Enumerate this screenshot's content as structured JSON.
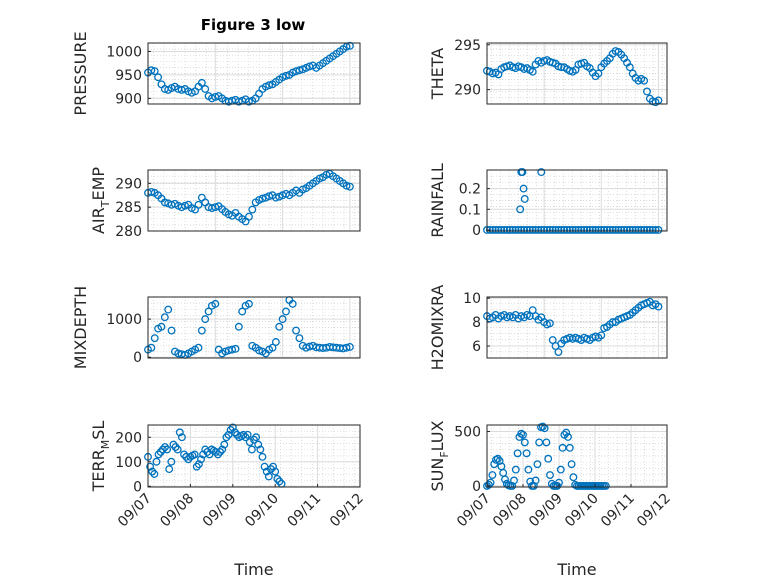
{
  "figure_title": "Figure 3 low",
  "marker_color": "#0072bd",
  "chart_data": [
    {
      "type": "scatter",
      "ylabel": "PRESSURE",
      "ylabel_sub": "",
      "xlim": [
        0,
        3.15
      ],
      "ylim": [
        888,
        1018
      ],
      "yticks": [
        900,
        950,
        1000
      ],
      "ytick_labels": [
        "900",
        "950",
        "1000"
      ],
      "xticks": [],
      "xtick_labels": [],
      "xlabel": "",
      "x": [
        0.0,
        0.05,
        0.1,
        0.15,
        0.2,
        0.25,
        0.3,
        0.35,
        0.4,
        0.45,
        0.5,
        0.55,
        0.6,
        0.65,
        0.7,
        0.75,
        0.8,
        0.85,
        0.9,
        0.95,
        1.0,
        1.05,
        1.1,
        1.15,
        1.2,
        1.25,
        1.3,
        1.35,
        1.4,
        1.45,
        1.5,
        1.55,
        1.6,
        1.65,
        1.7,
        1.75,
        1.8,
        1.85,
        1.9,
        1.95,
        2.0,
        2.05,
        2.1,
        2.15,
        2.2,
        2.25,
        2.3,
        2.35,
        2.4,
        2.45,
        2.5,
        2.55,
        2.6,
        2.65,
        2.7,
        2.75,
        2.8,
        2.85,
        2.9,
        2.95,
        3.0
      ],
      "y": [
        955,
        960,
        958,
        945,
        930,
        920,
        918,
        922,
        925,
        920,
        918,
        920,
        915,
        912,
        915,
        925,
        933,
        920,
        905,
        900,
        903,
        905,
        900,
        895,
        893,
        895,
        897,
        893,
        895,
        898,
        893,
        895,
        900,
        910,
        920,
        925,
        928,
        930,
        935,
        940,
        945,
        948,
        950,
        955,
        958,
        960,
        962,
        965,
        968,
        970,
        965,
        970,
        975,
        980,
        985,
        990,
        995,
        1000,
        1005,
        1010,
        1012
      ]
    },
    {
      "type": "scatter",
      "ylabel": "THETA",
      "ylabel_sub": "",
      "xlim": [
        0,
        3.15
      ],
      "ylim": [
        288.4,
        295.2
      ],
      "yticks": [
        290,
        295
      ],
      "ytick_labels": [
        "290",
        "295"
      ],
      "xticks": [],
      "xtick_labels": [],
      "xlabel": "",
      "x": [
        0.0,
        0.05,
        0.1,
        0.15,
        0.2,
        0.25,
        0.3,
        0.35,
        0.4,
        0.45,
        0.5,
        0.55,
        0.6,
        0.65,
        0.7,
        0.75,
        0.8,
        0.85,
        0.9,
        0.95,
        1.0,
        1.05,
        1.1,
        1.15,
        1.2,
        1.25,
        1.3,
        1.35,
        1.4,
        1.45,
        1.5,
        1.55,
        1.6,
        1.65,
        1.7,
        1.75,
        1.8,
        1.85,
        1.9,
        1.95,
        2.0,
        2.05,
        2.1,
        2.15,
        2.2,
        2.25,
        2.3,
        2.35,
        2.4,
        2.45,
        2.5,
        2.55,
        2.6,
        2.65,
        2.7,
        2.75,
        2.8,
        2.85,
        2.9,
        2.95,
        3.0
      ],
      "y": [
        292.1,
        292.0,
        291.8,
        291.9,
        291.7,
        292.3,
        292.5,
        292.6,
        292.7,
        292.5,
        292.4,
        292.6,
        292.5,
        292.3,
        292.4,
        292.2,
        292.0,
        292.8,
        293.2,
        293.0,
        293.2,
        293.3,
        293.1,
        293.0,
        292.9,
        292.6,
        292.5,
        292.5,
        292.3,
        292.1,
        292.0,
        292.2,
        292.8,
        292.9,
        293.0,
        292.6,
        292.4,
        291.9,
        291.5,
        291.8,
        292.5,
        292.9,
        293.2,
        293.5,
        294.0,
        294.3,
        294.2,
        293.9,
        293.5,
        293.0,
        292.5,
        291.8,
        291.3,
        291.0,
        291.2,
        291.0,
        289.8,
        289.0,
        288.7,
        288.6,
        288.8
      ]
    },
    {
      "type": "scatter",
      "ylabel": "AIR",
      "ylabel_sub": "T",
      "ylabel_tail": "EMP",
      "xlim": [
        0,
        3.15
      ],
      "ylim": [
        280,
        292.8
      ],
      "yticks": [
        280,
        285,
        290
      ],
      "ytick_labels": [
        "280",
        "285",
        "290"
      ],
      "xticks": [],
      "xtick_labels": [],
      "xlabel": "",
      "x": [
        0.0,
        0.05,
        0.1,
        0.15,
        0.2,
        0.25,
        0.3,
        0.35,
        0.4,
        0.45,
        0.5,
        0.55,
        0.6,
        0.65,
        0.7,
        0.75,
        0.8,
        0.85,
        0.9,
        0.95,
        1.0,
        1.05,
        1.1,
        1.15,
        1.2,
        1.25,
        1.3,
        1.35,
        1.4,
        1.45,
        1.5,
        1.55,
        1.6,
        1.65,
        1.7,
        1.75,
        1.8,
        1.85,
        1.9,
        1.95,
        2.0,
        2.05,
        2.1,
        2.15,
        2.2,
        2.25,
        2.3,
        2.35,
        2.4,
        2.45,
        2.5,
        2.55,
        2.6,
        2.65,
        2.7,
        2.75,
        2.8,
        2.85,
        2.9,
        2.95,
        3.0
      ],
      "y": [
        288.0,
        288.2,
        288.0,
        287.5,
        286.8,
        286.0,
        285.8,
        285.5,
        285.7,
        285.3,
        285.0,
        285.3,
        285.5,
        284.8,
        284.5,
        285.5,
        287.0,
        286.0,
        285.0,
        284.8,
        285.0,
        285.2,
        284.6,
        284.0,
        283.5,
        283.2,
        283.8,
        283.0,
        282.5,
        282.0,
        283.0,
        284.5,
        286.0,
        286.5,
        286.8,
        287.0,
        287.3,
        287.5,
        287.0,
        287.2,
        287.5,
        287.8,
        287.5,
        288.0,
        288.5,
        288.0,
        288.7,
        289.0,
        289.5,
        290.0,
        290.5,
        291.0,
        291.3,
        291.8,
        292.0,
        291.5,
        291.0,
        290.5,
        290.0,
        289.5,
        289.3
      ]
    },
    {
      "type": "scatter",
      "ylabel": "RAINFALL",
      "ylabel_sub": "",
      "xlim": [
        0,
        3.15
      ],
      "ylim": [
        -0.005,
        0.29
      ],
      "yticks": [
        0,
        0.1,
        0.2
      ],
      "ytick_labels": [
        "0",
        "0.1",
        "0.2"
      ],
      "xticks": [],
      "xtick_labels": [],
      "xlabel": "",
      "x": [
        0.0,
        0.05,
        0.1,
        0.15,
        0.2,
        0.25,
        0.3,
        0.35,
        0.4,
        0.45,
        0.5,
        0.55,
        0.6,
        0.65,
        0.7,
        0.75,
        0.8,
        0.85,
        0.9,
        0.95,
        1.0,
        1.05,
        1.1,
        1.15,
        1.2,
        1.25,
        1.3,
        1.35,
        1.4,
        1.45,
        1.5,
        1.55,
        1.6,
        1.65,
        1.7,
        1.75,
        1.8,
        1.85,
        1.9,
        1.95,
        2.0,
        2.05,
        2.1,
        2.15,
        2.2,
        2.25,
        2.3,
        2.35,
        2.4,
        2.45,
        2.5,
        2.55,
        2.6,
        2.65,
        2.7,
        2.75,
        2.8,
        2.85,
        2.9,
        2.95,
        3.0,
        0.58,
        0.6,
        0.62,
        0.64,
        0.66,
        0.95
      ],
      "y": [
        0,
        0,
        0,
        0,
        0,
        0,
        0,
        0,
        0,
        0,
        0,
        0,
        0,
        0,
        0,
        0,
        0,
        0,
        0,
        0,
        0,
        0,
        0,
        0,
        0,
        0,
        0,
        0,
        0,
        0,
        0,
        0,
        0,
        0,
        0,
        0,
        0,
        0,
        0,
        0,
        0,
        0,
        0,
        0,
        0,
        0,
        0,
        0,
        0,
        0,
        0,
        0,
        0,
        0,
        0,
        0,
        0,
        0,
        0,
        0,
        0,
        0.1,
        0.28,
        0.28,
        0.2,
        0.15,
        0.28
      ]
    },
    {
      "type": "scatter",
      "ylabel": "MIXDEPTH",
      "ylabel_sub": "",
      "xlim": [
        0,
        3.15
      ],
      "ylim": [
        -20,
        1580
      ],
      "yticks": [
        0,
        1000
      ],
      "ytick_labels": [
        "0",
        "1000"
      ],
      "xticks": [],
      "xtick_labels": [],
      "xlabel": "",
      "x": [
        0.0,
        0.05,
        0.1,
        0.15,
        0.2,
        0.25,
        0.3,
        0.35,
        0.4,
        0.45,
        0.5,
        0.55,
        0.6,
        0.65,
        0.7,
        0.75,
        0.8,
        0.85,
        0.9,
        0.95,
        1.0,
        1.05,
        1.1,
        1.15,
        1.2,
        1.25,
        1.3,
        1.35,
        1.4,
        1.45,
        1.5,
        1.55,
        1.6,
        1.65,
        1.7,
        1.75,
        1.8,
        1.85,
        1.9,
        1.95,
        2.0,
        2.05,
        2.1,
        2.15,
        2.2,
        2.25,
        2.3,
        2.35,
        2.4,
        2.45,
        2.5,
        2.55,
        2.6,
        2.65,
        2.7,
        2.75,
        2.8,
        2.85,
        2.9,
        2.95,
        3.0
      ],
      "y": [
        200,
        250,
        500,
        750,
        800,
        1050,
        1250,
        700,
        150,
        100,
        80,
        60,
        100,
        150,
        200,
        250,
        700,
        1000,
        1200,
        1350,
        1400,
        200,
        100,
        150,
        180,
        200,
        220,
        800,
        1200,
        1350,
        1400,
        300,
        250,
        180,
        150,
        100,
        200,
        250,
        400,
        800,
        1000,
        1200,
        1500,
        1400,
        700,
        500,
        300,
        250,
        280,
        300,
        260,
        250,
        240,
        250,
        270,
        260,
        250,
        240,
        230,
        250,
        270
      ]
    },
    {
      "type": "scatter",
      "ylabel": "H2OMIXRA",
      "ylabel_sub": "",
      "xlim": [
        0,
        3.15
      ],
      "ylim": [
        5,
        10.1
      ],
      "yticks": [
        6,
        8,
        10
      ],
      "ytick_labels": [
        "6",
        "8",
        "10"
      ],
      "xticks": [],
      "xtick_labels": [],
      "xlabel": "",
      "x": [
        0.0,
        0.05,
        0.1,
        0.15,
        0.2,
        0.25,
        0.3,
        0.35,
        0.4,
        0.45,
        0.5,
        0.55,
        0.6,
        0.65,
        0.7,
        0.75,
        0.8,
        0.85,
        0.9,
        0.95,
        1.0,
        1.05,
        1.1,
        1.15,
        1.2,
        1.25,
        1.3,
        1.35,
        1.4,
        1.45,
        1.5,
        1.55,
        1.6,
        1.65,
        1.7,
        1.75,
        1.8,
        1.85,
        1.9,
        1.95,
        2.0,
        2.05,
        2.1,
        2.15,
        2.2,
        2.25,
        2.3,
        2.35,
        2.4,
        2.45,
        2.5,
        2.55,
        2.6,
        2.65,
        2.7,
        2.75,
        2.8,
        2.85,
        2.9,
        2.95,
        3.0
      ],
      "y": [
        8.5,
        8.3,
        8.4,
        8.6,
        8.3,
        8.5,
        8.6,
        8.4,
        8.5,
        8.4,
        8.6,
        8.3,
        8.5,
        8.4,
        8.6,
        8.5,
        9.0,
        8.5,
        8.2,
        8.4,
        8.0,
        7.8,
        7.9,
        6.5,
        6.0,
        5.5,
        6.2,
        6.5,
        6.6,
        6.7,
        6.6,
        6.7,
        6.6,
        6.5,
        6.7,
        6.6,
        6.5,
        6.7,
        6.8,
        6.7,
        6.9,
        7.5,
        7.6,
        7.8,
        8.0,
        8.0,
        8.2,
        8.3,
        8.4,
        8.5,
        8.6,
        8.8,
        9.0,
        9.2,
        9.4,
        9.5,
        9.6,
        9.7,
        9.4,
        9.5,
        9.3
      ]
    },
    {
      "type": "scatter",
      "ylabel": "TERR",
      "ylabel_sub": "M",
      "ylabel_tail": "SL",
      "xlim": [
        0,
        5
      ],
      "ylim": [
        -3,
        250
      ],
      "yticks": [
        0,
        100,
        200
      ],
      "ytick_labels": [
        "0",
        "100",
        "200"
      ],
      "xticks": [
        0,
        1,
        2,
        3,
        4,
        5
      ],
      "xtick_labels": [
        "09/07",
        "09/08",
        "09/09",
        "09/10",
        "09/11",
        "09/12"
      ],
      "xlabel": "Time",
      "x": [
        0.0,
        0.05,
        0.1,
        0.15,
        0.2,
        0.25,
        0.3,
        0.35,
        0.4,
        0.45,
        0.5,
        0.55,
        0.6,
        0.65,
        0.7,
        0.75,
        0.8,
        0.85,
        0.9,
        0.95,
        1.0,
        1.05,
        1.1,
        1.15,
        1.2,
        1.25,
        1.3,
        1.35,
        1.4,
        1.45,
        1.5,
        1.55,
        1.6,
        1.65,
        1.7,
        1.75,
        1.8,
        1.85,
        1.9,
        1.95,
        2.0,
        2.05,
        2.1,
        2.15,
        2.2,
        2.25,
        2.3,
        2.35,
        2.4,
        2.45,
        2.5,
        2.55,
        2.6,
        2.65,
        2.7,
        2.75,
        2.8,
        2.85,
        2.9,
        2.95,
        3.0,
        3.05,
        3.1,
        3.15
      ],
      "y": [
        120,
        80,
        60,
        50,
        100,
        130,
        140,
        150,
        160,
        150,
        70,
        100,
        170,
        160,
        150,
        220,
        200,
        130,
        120,
        110,
        120,
        125,
        130,
        80,
        90,
        110,
        130,
        150,
        140,
        130,
        150,
        145,
        140,
        130,
        140,
        150,
        170,
        200,
        210,
        230,
        240,
        220,
        210,
        200,
        205,
        210,
        200,
        210,
        180,
        150,
        190,
        200,
        170,
        150,
        120,
        80,
        60,
        40,
        70,
        80,
        60,
        30,
        20,
        10
      ]
    },
    {
      "type": "scatter",
      "ylabel": "SUN",
      "ylabel_sub": "F",
      "ylabel_tail": "LUX",
      "xlim": [
        0,
        5
      ],
      "ylim": [
        -10,
        560
      ],
      "yticks": [
        0,
        500
      ],
      "ytick_labels": [
        "0",
        "500"
      ],
      "xticks": [
        0,
        1,
        2,
        3,
        4,
        5
      ],
      "xtick_labels": [
        "09/07",
        "09/08",
        "09/09",
        "09/10",
        "09/11",
        "09/12"
      ],
      "xlabel": "Time",
      "x": [
        0.0,
        0.05,
        0.1,
        0.15,
        0.2,
        0.25,
        0.3,
        0.35,
        0.4,
        0.45,
        0.5,
        0.55,
        0.6,
        0.65,
        0.7,
        0.75,
        0.8,
        0.85,
        0.9,
        0.95,
        1.0,
        1.05,
        1.1,
        1.15,
        1.2,
        1.25,
        1.3,
        1.35,
        1.4,
        1.45,
        1.5,
        1.55,
        1.6,
        1.65,
        1.7,
        1.75,
        1.8,
        1.85,
        1.9,
        1.95,
        2.0,
        2.05,
        2.1,
        2.15,
        2.2,
        2.25,
        2.3,
        2.35,
        2.4,
        2.45,
        2.5,
        2.55,
        2.6,
        2.65,
        2.7,
        2.75,
        2.8,
        2.85,
        2.9,
        2.95,
        3.0,
        3.05,
        3.1,
        3.15,
        3.2,
        3.25,
        3.3
      ],
      "y": [
        0,
        10,
        30,
        100,
        200,
        240,
        250,
        230,
        180,
        120,
        60,
        20,
        5,
        0,
        0,
        50,
        150,
        300,
        450,
        480,
        470,
        400,
        300,
        150,
        40,
        0,
        0,
        50,
        200,
        400,
        540,
        545,
        530,
        400,
        250,
        100,
        20,
        0,
        0,
        0,
        30,
        150,
        350,
        470,
        490,
        450,
        350,
        200,
        80,
        10,
        0,
        0,
        0,
        0,
        0,
        0,
        0,
        0,
        0,
        0,
        0,
        0,
        0,
        0,
        0,
        0,
        0
      ]
    }
  ]
}
